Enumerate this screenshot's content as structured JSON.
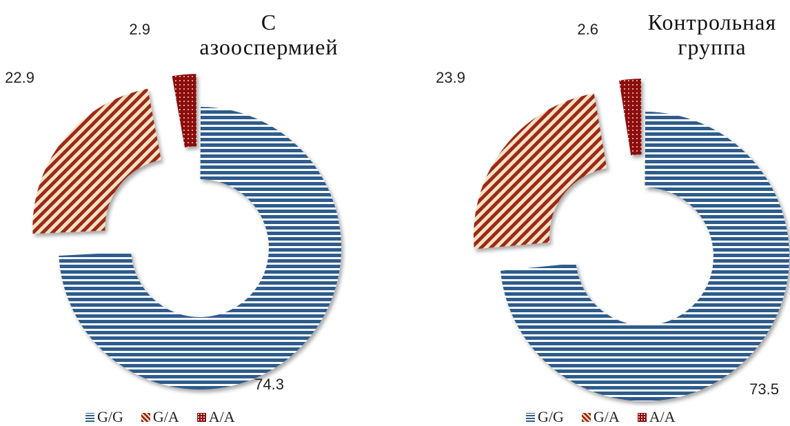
{
  "colors": {
    "gg": "#2e5b8c",
    "ga": "#9b2a12",
    "aa": "#8b0b0b",
    "ga_bg": "#f7e1c6"
  },
  "chart_data": [
    {
      "type": "pie",
      "variant": "doughnut-exploded",
      "title": "С\nазооспермией",
      "categories": [
        "G/G",
        "G/A",
        "A/A"
      ],
      "values": [
        74.3,
        22.9,
        2.9
      ],
      "data_labels": [
        "74.3",
        "22.9",
        "2.9"
      ],
      "legend_position": "bottom",
      "legend": [
        "G/G",
        "G/A",
        "A/A"
      ]
    },
    {
      "type": "pie",
      "variant": "doughnut-exploded",
      "title": "Контрольная\nгруппа",
      "categories": [
        "G/G",
        "G/A",
        "A/A"
      ],
      "values": [
        73.5,
        23.9,
        2.6
      ],
      "data_labels": [
        "73.5",
        "23.9",
        "2.6"
      ],
      "legend_position": "bottom",
      "legend": [
        "G/G",
        "G/A",
        "A/A"
      ]
    }
  ]
}
